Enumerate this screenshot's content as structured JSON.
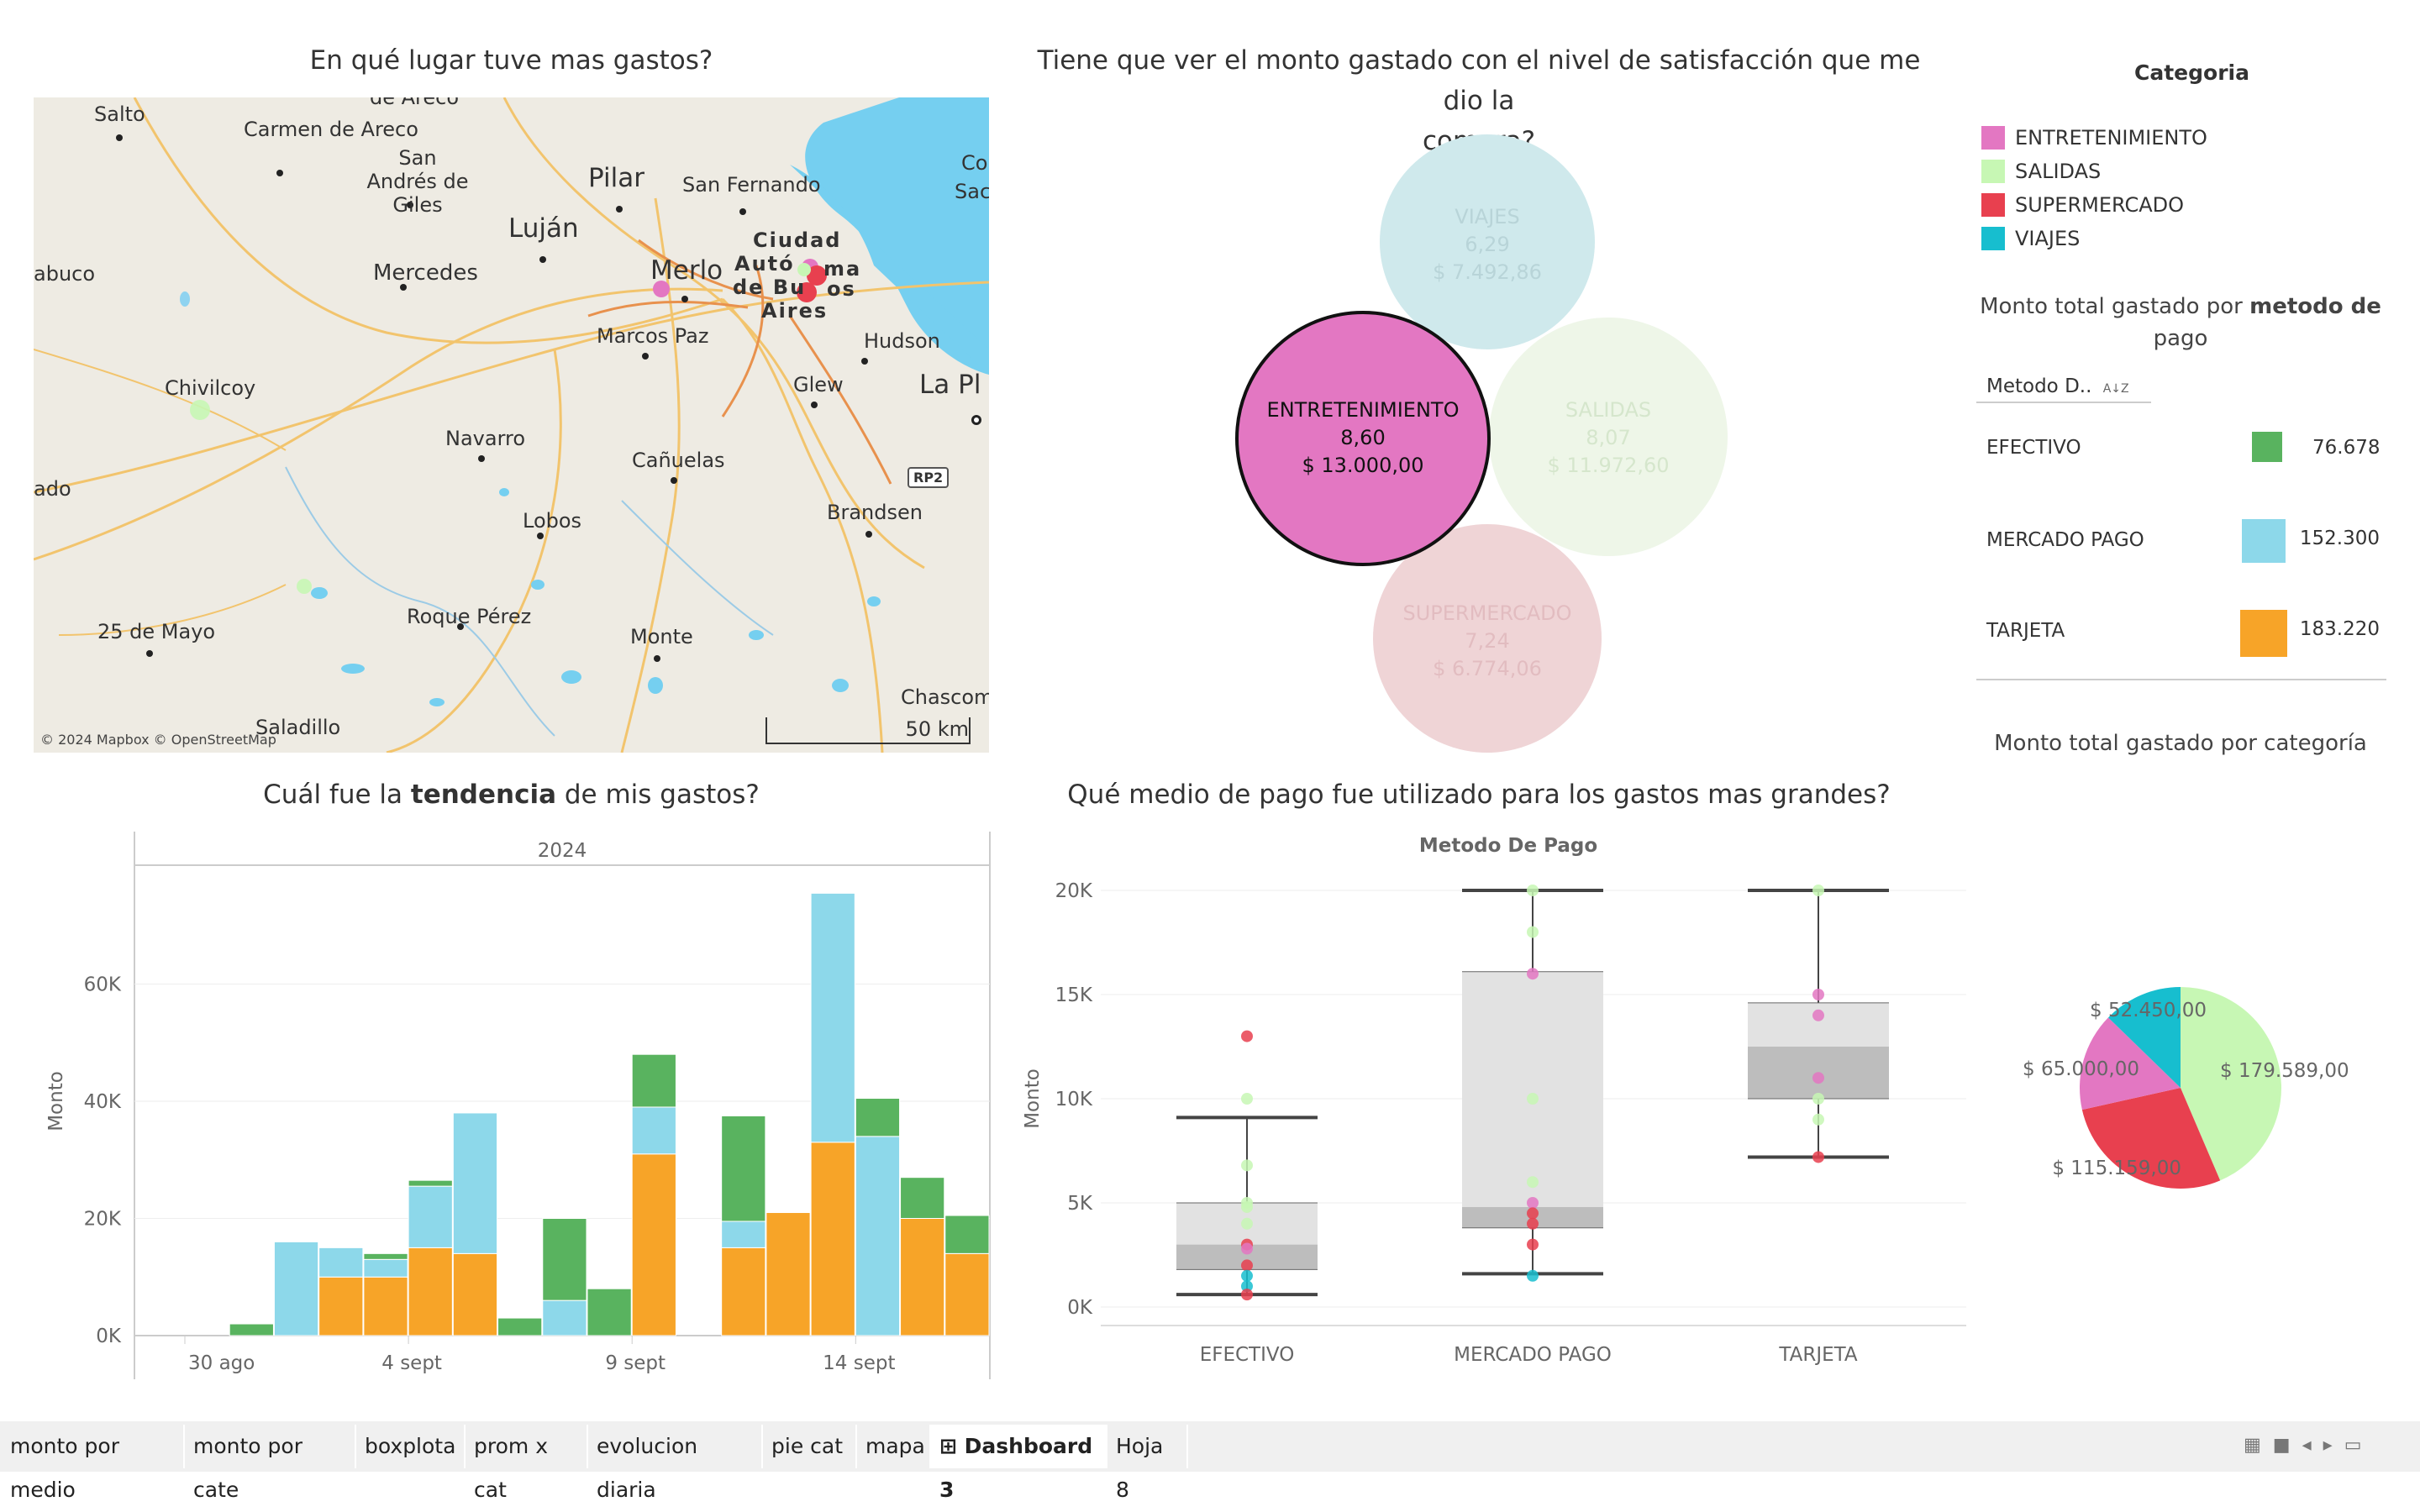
{
  "titles": {
    "map": "En qué lugar tuve mas gastos?",
    "bubble_line1": "Tiene que ver el monto gastado con el nivel de satisfacción que me dio la",
    "bubble_line2": "compra?",
    "trend_pre": "Cuál fue la ",
    "trend_bold": "tendencia",
    "trend_post": " de mis gastos?",
    "box": "Qué medio de pago fue utilizado para los gastos mas grandes?",
    "box_header": "Metodo De Pago",
    "payment_pre": "Monto total gastado por ",
    "payment_bold": "metodo de",
    "payment_line2": "pago",
    "pie": "Monto total gastado por categoría"
  },
  "legend": {
    "title": "Categoria",
    "items": [
      {
        "label": "ENTRETENIMIENTO",
        "color": "#e377c2"
      },
      {
        "label": "SALIDAS",
        "color": "#c7f7b4"
      },
      {
        "label": "SUPERMERCADO",
        "color": "#e8404f"
      },
      {
        "label": "VIAJES",
        "color": "#17becf"
      }
    ]
  },
  "map": {
    "labels": [
      "Salto",
      "Carmen de Areco",
      "San Andrés de Giles",
      "Pilar",
      "San Fernando",
      "Luján",
      "Ciudad",
      "Autó",
      "ma",
      "de Bu",
      "os",
      "Aires",
      "Merlo",
      "Mercedes",
      "abuco",
      "Marcos Paz",
      "Hudson",
      "La Pl",
      "Chivilcoy",
      "Glew",
      "Navarro",
      "Cañuelas",
      "RP2",
      "Brandsen",
      "ado",
      "Lobos",
      "25 de Mayo",
      "Roque Pérez",
      "Monte",
      "Saladillo",
      "Chascomu",
      "Co",
      "Sac",
      "de Areco"
    ],
    "copyright": "© 2024 Mapbox © OpenStreetMap",
    "scale": "50 km"
  },
  "bubbles": [
    {
      "name": "VIAJES",
      "score": "6,29",
      "amount": "$ 7.492,86",
      "color": "#cfe9ec"
    },
    {
      "name": "ENTRETENIMIENTO",
      "score": "8,60",
      "amount": "$ 13.000,00",
      "color": "#e377c2"
    },
    {
      "name": "SALIDAS",
      "score": "8,07",
      "amount": "$ 11.972,60",
      "color": "#eef6e8"
    },
    {
      "name": "SUPERMERCADO",
      "score": "7,24",
      "amount": "$ 6.774,06",
      "color": "#efd4d6"
    }
  ],
  "payment_table": {
    "header": "Metodo D..",
    "sort_icon": "az-sort-icon",
    "rows": [
      {
        "method": "EFECTIVO",
        "color": "#59b35f",
        "value": "76.678"
      },
      {
        "method": "MERCADO PAGO",
        "color": "#8dd8ea",
        "value": "152.300"
      },
      {
        "method": "TARJETA",
        "color": "#f7a428",
        "value": "183.220"
      }
    ]
  },
  "tabs": [
    {
      "label": "monto por medio",
      "active": false
    },
    {
      "label": "monto por cate",
      "active": false
    },
    {
      "label": "boxplota",
      "active": false
    },
    {
      "label": "prom x cat",
      "active": false
    },
    {
      "label": "evolucion diaria",
      "active": false
    },
    {
      "label": "pie cat",
      "active": false
    },
    {
      "label": "mapa",
      "active": false
    },
    {
      "label": "Dashboard 3",
      "active": true
    },
    {
      "label": "Hoja 8",
      "active": false
    }
  ],
  "chart_data": [
    {
      "type": "bar",
      "title": "Cuál fue la tendencia de mis gastos?",
      "year_header": "2024",
      "ylabel": "Monto",
      "ylim": [
        0,
        80000
      ],
      "yticks": [
        "0K",
        "20K",
        "40K",
        "60K"
      ],
      "xticks": [
        "30 ago",
        "4 sept",
        "9 sept",
        "14 sept"
      ],
      "categories": [
        "30 ago",
        "31 ago",
        "1 sept",
        "2 sept",
        "3 sept",
        "4 sept",
        "5 sept",
        "6 sept",
        "7 sept",
        "8 sept",
        "9 sept",
        "10 sept",
        "11 sept",
        "12 sept",
        "13 sept",
        "14 sept",
        "15 sept",
        "16 sept"
      ],
      "series": [
        {
          "name": "TARJETA",
          "color": "#f7a428",
          "values": [
            0,
            0,
            0,
            10000,
            10000,
            15000,
            14000,
            0,
            0,
            0,
            31000,
            0,
            15000,
            21000,
            33000,
            0,
            20000,
            14000
          ]
        },
        {
          "name": "MERCADO PAGO",
          "color": "#8dd8ea",
          "values": [
            0,
            0,
            16000,
            5000,
            3000,
            10500,
            24000,
            0,
            6000,
            0,
            8000,
            0,
            4500,
            0,
            42500,
            34000,
            0,
            0
          ]
        },
        {
          "name": "EFECTIVO",
          "color": "#59b35f",
          "values": [
            0,
            2000,
            0,
            0,
            1000,
            1000,
            0,
            3000,
            14000,
            8000,
            9000,
            0,
            18000,
            0,
            0,
            6500,
            7000,
            6500
          ]
        }
      ]
    },
    {
      "type": "box",
      "title": "Qué medio de pago fue utilizado para los gastos mas grandes?",
      "ylabel": "Monto",
      "ylim": [
        0,
        20000
      ],
      "yticks": [
        "0K",
        "5K",
        "10K",
        "15K",
        "20K"
      ],
      "categories": [
        "EFECTIVO",
        "MERCADO PAGO",
        "TARJETA"
      ],
      "boxes": [
        {
          "min": 600,
          "q1": 1800,
          "median": 3000,
          "q3": 5000,
          "max": 9100
        },
        {
          "min": 1600,
          "q1": 3800,
          "median": 4800,
          "q3": 16100,
          "max": 20000
        },
        {
          "min": 7200,
          "q1": 10000,
          "median": 12500,
          "q3": 14600,
          "max": 20000
        }
      ],
      "points": [
        [
          {
            "y": 13000,
            "c": "#e8404f"
          },
          {
            "y": 10000,
            "c": "#c7f7b4"
          },
          {
            "y": 6800,
            "c": "#c7f7b4"
          },
          {
            "y": 5000,
            "c": "#c7f7b4"
          },
          {
            "y": 4800,
            "c": "#c7f7b4"
          },
          {
            "y": 4000,
            "c": "#c7f7b4"
          },
          {
            "y": 3000,
            "c": "#e8404f"
          },
          {
            "y": 2800,
            "c": "#e377c2"
          },
          {
            "y": 2000,
            "c": "#e8404f"
          },
          {
            "y": 1500,
            "c": "#17becf"
          },
          {
            "y": 1000,
            "c": "#17becf"
          },
          {
            "y": 600,
            "c": "#e8404f"
          }
        ],
        [
          {
            "y": 20000,
            "c": "#c7f7b4"
          },
          {
            "y": 18000,
            "c": "#c7f7b4"
          },
          {
            "y": 16000,
            "c": "#e377c2"
          },
          {
            "y": 10000,
            "c": "#c7f7b4"
          },
          {
            "y": 6000,
            "c": "#c7f7b4"
          },
          {
            "y": 5000,
            "c": "#e377c2"
          },
          {
            "y": 4500,
            "c": "#e8404f"
          },
          {
            "y": 4000,
            "c": "#e8404f"
          },
          {
            "y": 3000,
            "c": "#e8404f"
          },
          {
            "y": 1500,
            "c": "#17becf"
          }
        ],
        [
          {
            "y": 20000,
            "c": "#c7f7b4"
          },
          {
            "y": 15000,
            "c": "#e377c2"
          },
          {
            "y": 14000,
            "c": "#e377c2"
          },
          {
            "y": 11000,
            "c": "#e377c2"
          },
          {
            "y": 10000,
            "c": "#c7f7b4"
          },
          {
            "y": 9000,
            "c": "#c7f7b4"
          },
          {
            "y": 7200,
            "c": "#e8404f"
          }
        ]
      ]
    },
    {
      "type": "pie",
      "title": "Monto total gastado por categoría",
      "slices": [
        {
          "label": "$ 179.589,00",
          "value": 179589,
          "color": "#c7f7b4"
        },
        {
          "label": "$ 115.159,00",
          "value": 115159,
          "color": "#e8404f"
        },
        {
          "label": "$ 65.000,00",
          "value": 65000,
          "color": "#e377c2"
        },
        {
          "label": "$ 52.450,00",
          "value": 52450,
          "color": "#17becf"
        }
      ]
    }
  ]
}
